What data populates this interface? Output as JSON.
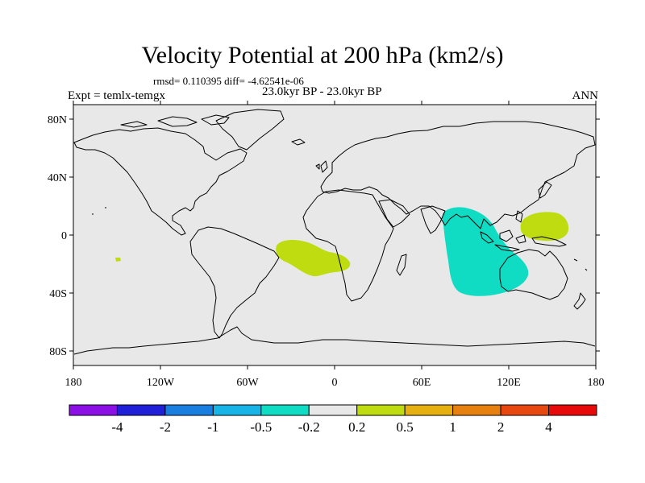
{
  "title": "Velocity Potential at 200 hPa (km2/s)",
  "stats": "rmsd= 0.110395 diff= -4.62541e-06",
  "expt": "Expt = temlx-temgx",
  "subtitle": "23.0kyr BP - 23.0kyr BP",
  "season": "ANN",
  "y_ticks": [
    "80N",
    "40N",
    "0",
    "40S",
    "80S"
  ],
  "x_ticks": [
    "180",
    "120W",
    "60W",
    "0",
    "60E",
    "120E",
    "180"
  ],
  "colorbar": {
    "colors": [
      "#8c10e6",
      "#2020d8",
      "#1a7ee0",
      "#18b4e8",
      "#10dcc4",
      "#e8e8e8",
      "#bfdc10",
      "#e6b010",
      "#e6800e",
      "#e64810",
      "#e60a0a"
    ],
    "labels": [
      "-4",
      "-2",
      "-1",
      "-0.5",
      "-0.2",
      "0.2",
      "0.5",
      "1",
      "2",
      "4"
    ]
  },
  "map": {
    "background_color": "#e8e8e8",
    "anomaly_regions": [
      {
        "name": "south-atlantic",
        "category": "0.2 to 0.5",
        "color": "#bfdc10"
      },
      {
        "name": "indian-ocean",
        "category": "-0.5 to -0.2",
        "color": "#10dcc4"
      },
      {
        "name": "western-pacific",
        "category": "0.2 to 0.5",
        "color": "#bfdc10"
      },
      {
        "name": "east-pacific-speck",
        "category": "0.2 to 0.5",
        "color": "#bfdc10"
      }
    ]
  }
}
